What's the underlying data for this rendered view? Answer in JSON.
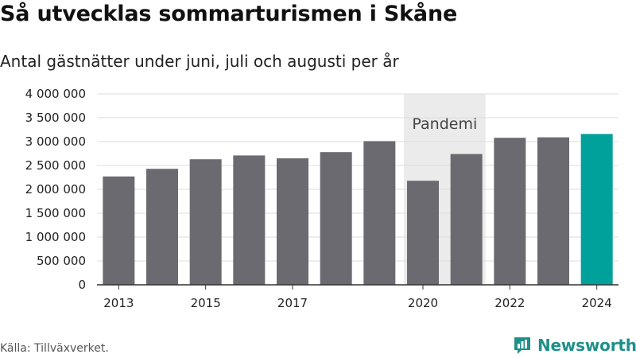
{
  "title": "Så utvecklas sommarturismen i Skåne",
  "subtitle": "Antal gästnätter under juni, juli och augusti per år",
  "source": "Källa: Tillväxverket.",
  "brand": {
    "name": "Newsworthy",
    "icon": "newsworthy-logo-icon",
    "color": "#1f8f8a"
  },
  "chart_data": {
    "type": "bar",
    "categories": [
      "2013",
      "2014",
      "2015",
      "2016",
      "2017",
      "2018",
      "2019",
      "2020",
      "2021",
      "2022",
      "2023",
      "2024"
    ],
    "x_tick_labels": [
      "2013",
      "",
      "2015",
      "",
      "2017",
      "",
      "",
      "2020",
      "",
      "2022",
      "",
      "2024"
    ],
    "values": [
      2270000,
      2430000,
      2630000,
      2710000,
      2650000,
      2780000,
      3010000,
      2180000,
      2740000,
      3080000,
      3090000,
      3160000
    ],
    "colors": [
      "#6b6a70",
      "#6b6a70",
      "#6b6a70",
      "#6b6a70",
      "#6b6a70",
      "#6b6a70",
      "#6b6a70",
      "#6b6a70",
      "#6b6a70",
      "#6b6a70",
      "#6b6a70",
      "#00a19a"
    ],
    "ylim": [
      0,
      4000000
    ],
    "y_ticks": [
      0,
      500000,
      1000000,
      1500000,
      2000000,
      2500000,
      3000000,
      3500000,
      4000000
    ],
    "y_tick_labels": [
      "0",
      "500 000",
      "1 000 000",
      "1 500 000",
      "2 000 000",
      "2 500 000",
      "3 000 000",
      "3 500 000",
      "4 000 000"
    ],
    "highlight_band": {
      "from": "2020",
      "to": "2021",
      "label": "Pandemi",
      "color": "#ebebeb"
    },
    "grid": true,
    "title": "Så utvecklas sommarturismen i Skåne",
    "xlabel": "",
    "ylabel": ""
  }
}
